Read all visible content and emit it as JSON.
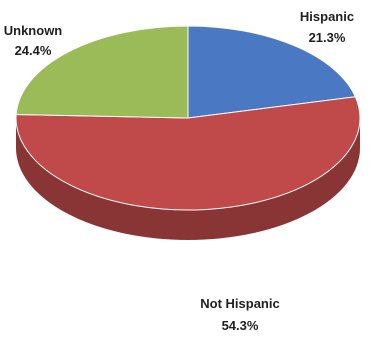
{
  "chart_data": {
    "type": "pie",
    "style": "3d",
    "slices": [
      {
        "label": "Hispanic",
        "value": 21.3,
        "value_label": "21.3%",
        "color": "#4a78c2"
      },
      {
        "label": "Not Hispanic",
        "value": 54.3,
        "value_label": "54.3%",
        "color": "#c0494a"
      },
      {
        "label": "Unknown",
        "value": 24.4,
        "value_label": "24.4%",
        "color": "#9bbb59"
      }
    ],
    "legend": "none"
  }
}
